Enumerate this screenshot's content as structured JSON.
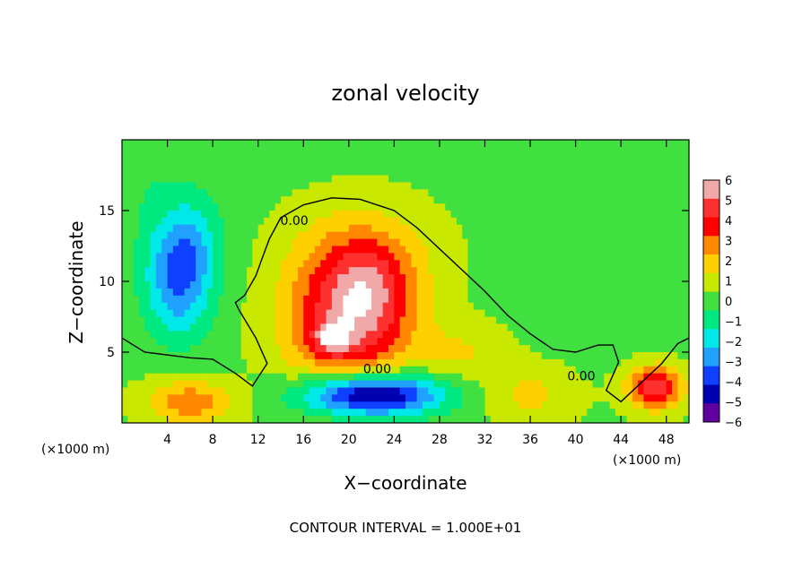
{
  "chart_data": {
    "type": "heatmap",
    "title": "zonal velocity",
    "xlabel": "X−coordinate",
    "ylabel": "Z−coordinate",
    "x_unit_left": "(×1000 m)",
    "x_unit_right": "(×1000 m)",
    "footer": "CONTOUR INTERVAL = 1.000E+01",
    "xlim": [
      0,
      50
    ],
    "ylim": [
      0,
      20
    ],
    "x_ticks": [
      "4",
      "8",
      "12",
      "16",
      "20",
      "24",
      "28",
      "32",
      "36",
      "40",
      "44",
      "48"
    ],
    "x_tick_values": [
      4,
      8,
      12,
      16,
      20,
      24,
      28,
      32,
      36,
      40,
      44,
      48
    ],
    "y_ticks": [
      "5",
      "10",
      "15"
    ],
    "y_tick_values": [
      5,
      10,
      15
    ],
    "colorbar": {
      "labels": [
        "6",
        "5",
        "4",
        "3",
        "2",
        "1",
        "0",
        "−1",
        "−2",
        "−3",
        "−4",
        "−5",
        "−6"
      ],
      "values": [
        6,
        5,
        4,
        3,
        2,
        1,
        0,
        -1,
        -2,
        -3,
        -4,
        -5,
        -6
      ],
      "colors": [
        "#f0a8a8",
        "#ff3030",
        "#ff0000",
        "#ff8800",
        "#ffd000",
        "#c8e800",
        "#40e040",
        "#00e880",
        "#00e8e8",
        "#20a0ff",
        "#1040ff",
        "#0000b0",
        "#6000a0"
      ]
    },
    "contour_labels": [
      {
        "text": "0.00",
        "x": 15.2,
        "y": 14.0
      },
      {
        "text": "0.00",
        "x": 22.5,
        "y": 3.5
      },
      {
        "text": "0.00",
        "x": 40.5,
        "y": 3.0
      }
    ],
    "zero_contour": [
      [
        0,
        6
      ],
      [
        2,
        5
      ],
      [
        6,
        4.6
      ],
      [
        8,
        4.5
      ],
      [
        10,
        3.5
      ],
      [
        11.5,
        2.6
      ],
      [
        12.8,
        4.2
      ],
      [
        11.8,
        6
      ],
      [
        10.3,
        8
      ],
      [
        10,
        8.5
      ],
      [
        10.8,
        9
      ],
      [
        11.8,
        10.4
      ],
      [
        12.3,
        11.5
      ],
      [
        13,
        13
      ],
      [
        14,
        14.5
      ],
      [
        16,
        15.4
      ],
      [
        18.5,
        15.9
      ],
      [
        21,
        15.8
      ],
      [
        24,
        15
      ],
      [
        26,
        13.8
      ],
      [
        28,
        12.3
      ],
      [
        30,
        10.8
      ],
      [
        32,
        9.3
      ],
      [
        34,
        7.6
      ],
      [
        36,
        6.3
      ],
      [
        38,
        5.2
      ],
      [
        40,
        5
      ],
      [
        42,
        5.5
      ],
      [
        43.3,
        5.5
      ],
      [
        43.8,
        4.3
      ],
      [
        42.7,
        2.3
      ],
      [
        44,
        1.5
      ],
      [
        46,
        3
      ],
      [
        47.6,
        4.2
      ],
      [
        49,
        5.6
      ],
      [
        50,
        6
      ]
    ],
    "field_blobs": [
      {
        "x": 20,
        "y": 7,
        "sx": 5.5,
        "sy": 4.5,
        "v": 5.0
      },
      {
        "x": 22,
        "y": 9.5,
        "sx": 3.5,
        "sy": 3.0,
        "v": 1.8
      },
      {
        "x": 18.5,
        "y": 6,
        "sx": 1.5,
        "sy": 1.0,
        "v": 3.0
      },
      {
        "x": 21,
        "y": 12,
        "sx": 6.0,
        "sy": 3.5,
        "v": 2.0
      },
      {
        "x": 22,
        "y": 2,
        "sx": 6.0,
        "sy": 1.5,
        "v": -7.0
      },
      {
        "x": 5,
        "y": 10,
        "sx": 3.0,
        "sy": 4.0,
        "v": -3.8
      },
      {
        "x": 6,
        "y": 13,
        "sx": 3.0,
        "sy": 3.0,
        "v": -1.5
      },
      {
        "x": 6,
        "y": 1.5,
        "sx": 4.0,
        "sy": 1.5,
        "v": 3.0
      },
      {
        "x": 47,
        "y": 2.5,
        "sx": 2.5,
        "sy": 1.5,
        "v": 5.0
      },
      {
        "x": 36,
        "y": 2,
        "sx": 4.0,
        "sy": 2.0,
        "v": 1.5
      },
      {
        "x": 43,
        "y": 12,
        "sx": 6.0,
        "sy": 6.0,
        "v": -0.6
      },
      {
        "x": 2,
        "y": 17,
        "sx": 6.0,
        "sy": 4.0,
        "v": -0.6
      },
      {
        "x": 30,
        "y": 5,
        "sx": 4.0,
        "sy": 2.0,
        "v": 1.2
      }
    ]
  }
}
